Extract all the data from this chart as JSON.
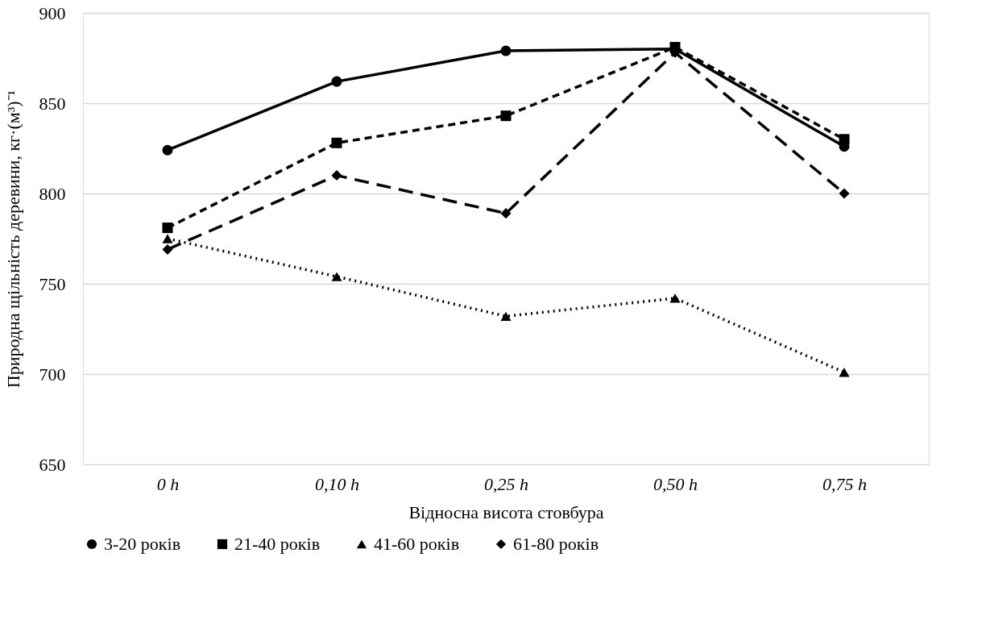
{
  "chart_data": {
    "type": "line",
    "xlabel": "Відносна висота стовбура",
    "ylabel": "Природна щільність деревини, кг·(м³)⁻¹",
    "categories": [
      "0 h",
      "0,10 h",
      "0,25 h",
      "0,50 h",
      "0,75 h"
    ],
    "series": [
      {
        "name": "3-20 років",
        "color": "#000000",
        "marker": "circle",
        "line_style": "solid",
        "values": [
          824,
          862,
          879,
          880,
          826
        ]
      },
      {
        "name": "21-40 років",
        "color": "#000000",
        "marker": "square",
        "line_style": "dashed",
        "values": [
          781,
          828,
          843,
          881,
          830
        ]
      },
      {
        "name": "41-60 років",
        "color": "#000000",
        "marker": "triangle",
        "line_style": "dotted",
        "values": [
          775,
          754,
          732,
          742,
          701
        ]
      },
      {
        "name": "61-80 років",
        "color": "#000000",
        "marker": "diamond",
        "line_style": "longdash",
        "values": [
          769,
          810,
          789,
          878,
          800
        ]
      }
    ],
    "ylim": [
      650,
      900
    ],
    "yticks": [
      650,
      700,
      750,
      800,
      850,
      900
    ],
    "grid": "y",
    "legend": "bottom"
  }
}
